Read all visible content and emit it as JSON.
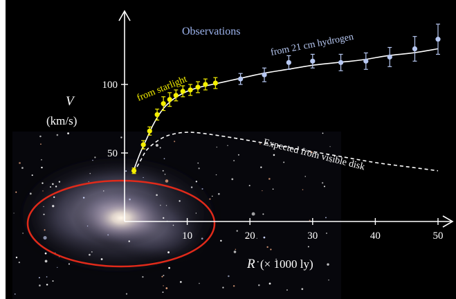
{
  "chart_data": {
    "type": "scatter",
    "title": "Observations",
    "xlabel_var": "R",
    "xlabel_unit": "(× 1000 ly)",
    "ylabel_var": "V",
    "ylabel_unit": "(km/s)",
    "xlim": [
      0,
      52
    ],
    "ylim": [
      0,
      135
    ],
    "x_ticks": [
      10,
      20,
      30,
      40,
      50
    ],
    "y_ticks": [
      50,
      100
    ],
    "series": [
      {
        "name": "from starlight",
        "color": "#f5f000",
        "points": [
          {
            "x": 1.5,
            "y": 37,
            "err": 2
          },
          {
            "x": 3.0,
            "y": 56,
            "err": 3
          },
          {
            "x": 4.0,
            "y": 66,
            "err": 3
          },
          {
            "x": 5.2,
            "y": 78,
            "err": 4
          },
          {
            "x": 6.2,
            "y": 86,
            "err": 5
          },
          {
            "x": 7.2,
            "y": 89,
            "err": 5
          },
          {
            "x": 8.2,
            "y": 92,
            "err": 4
          },
          {
            "x": 9.3,
            "y": 95,
            "err": 4
          },
          {
            "x": 10.5,
            "y": 96,
            "err": 4
          },
          {
            "x": 11.7,
            "y": 98,
            "err": 4
          },
          {
            "x": 12.9,
            "y": 100,
            "err": 4
          },
          {
            "x": 14.5,
            "y": 101,
            "err": 4
          }
        ]
      },
      {
        "name": "from 21 cm hydrogen",
        "color": "#b7c8f2",
        "points": [
          {
            "x": 18.5,
            "y": 104,
            "err": 4
          },
          {
            "x": 22.3,
            "y": 107,
            "err": 5
          },
          {
            "x": 26.2,
            "y": 116,
            "err": 5
          },
          {
            "x": 30.0,
            "y": 117,
            "err": 5
          },
          {
            "x": 34.5,
            "y": 116,
            "err": 6
          },
          {
            "x": 38.5,
            "y": 117,
            "err": 6
          },
          {
            "x": 42.3,
            "y": 120,
            "err": 7
          },
          {
            "x": 46.3,
            "y": 126,
            "err": 9
          },
          {
            "x": 50.0,
            "y": 133,
            "err": 11
          }
        ]
      }
    ],
    "fit_curve": {
      "x": [
        1.5,
        2.5,
        3.5,
        4.5,
        5.5,
        6.5,
        8,
        10,
        12,
        14,
        16,
        18,
        22,
        26,
        30,
        34,
        38,
        42,
        46,
        50
      ],
      "y": [
        38,
        50,
        60,
        70,
        78,
        84,
        90,
        95,
        98,
        100,
        102,
        104,
        108,
        111,
        114,
        116,
        118,
        121,
        123,
        126
      ]
    },
    "expected_curve": {
      "label": "Expected from visible disk",
      "x": [
        1.5,
        2.5,
        3.5,
        5,
        6.5,
        8,
        9.5,
        11,
        13,
        16,
        20,
        25,
        30,
        35,
        40,
        45,
        50
      ],
      "y": [
        36,
        44,
        52,
        58,
        62,
        64,
        65,
        65,
        64,
        62,
        59,
        55,
        51,
        47,
        43,
        40,
        37
      ]
    }
  },
  "colors": {
    "background": "#000000",
    "axis": "#ffffff",
    "title": "#9db4ee",
    "starlight": "#f5f000",
    "hydrogen": "#b7c8f2",
    "ellipse": "#e02a1a"
  },
  "image": {
    "description": "spiral galaxy photo (Triangulum/M33-like) with red ellipse highlighting core"
  }
}
